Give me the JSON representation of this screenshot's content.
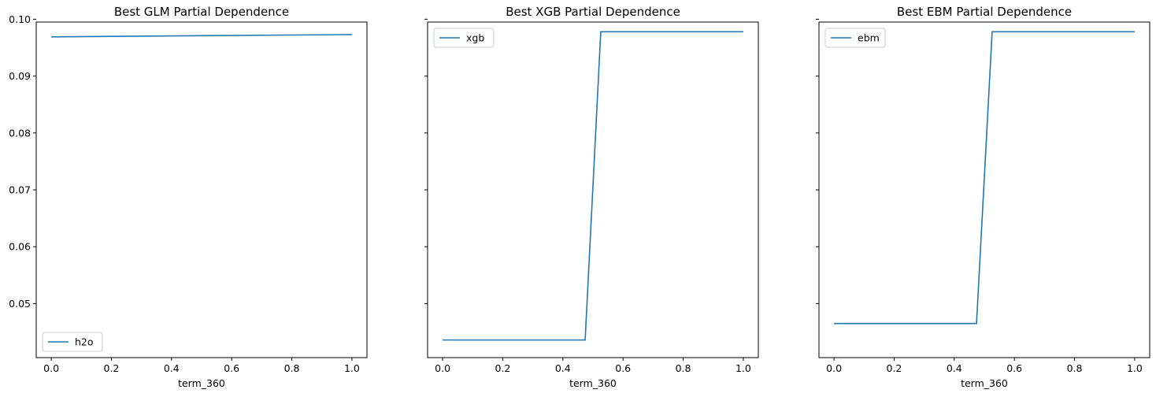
{
  "chart_data": [
    {
      "type": "line",
      "title": "Best GLM Partial Dependence",
      "xlabel": "term_360",
      "ylabel": "",
      "xlim": [
        -0.05,
        1.05
      ],
      "ylim": [
        0.0405,
        0.0995
      ],
      "xticks": [
        0.0,
        0.2,
        0.4,
        0.6,
        0.8,
        1.0
      ],
      "xtick_labels": [
        "0.0",
        "0.2",
        "0.4",
        "0.6",
        "0.8",
        "1.0"
      ],
      "yticks": [
        0.05,
        0.06,
        0.07,
        0.08,
        0.09,
        0.1
      ],
      "ytick_labels": [
        "0.05",
        "0.06",
        "0.07",
        "0.08",
        "0.09",
        "0.10"
      ],
      "legend_position": "lower-left",
      "series": [
        {
          "name": "h2o",
          "color": "#1f77b4",
          "x": [
            0.0,
            1.0
          ],
          "y": [
            0.0969,
            0.0973
          ]
        }
      ]
    },
    {
      "type": "line",
      "title": "Best XGB Partial Dependence",
      "xlabel": "term_360",
      "ylabel": "",
      "xlim": [
        -0.05,
        1.05
      ],
      "ylim": [
        0.0405,
        0.0995
      ],
      "xticks": [
        0.0,
        0.2,
        0.4,
        0.6,
        0.8,
        1.0
      ],
      "xtick_labels": [
        "0.0",
        "0.2",
        "0.4",
        "0.6",
        "0.8",
        "1.0"
      ],
      "yticks": [
        0.05,
        0.06,
        0.07,
        0.08,
        0.09,
        0.1
      ],
      "ytick_labels": [],
      "legend_position": "upper-left",
      "series": [
        {
          "name": "xgb",
          "color": "#1f77b4",
          "x": [
            0.0,
            0.474,
            0.526,
            1.0
          ],
          "y": [
            0.0436,
            0.0436,
            0.0978,
            0.0978
          ]
        }
      ]
    },
    {
      "type": "line",
      "title": "Best EBM Partial Dependence",
      "xlabel": "term_360",
      "ylabel": "",
      "xlim": [
        -0.05,
        1.05
      ],
      "ylim": [
        0.0405,
        0.0995
      ],
      "xticks": [
        0.0,
        0.2,
        0.4,
        0.6,
        0.8,
        1.0
      ],
      "xtick_labels": [
        "0.0",
        "0.2",
        "0.4",
        "0.6",
        "0.8",
        "1.0"
      ],
      "yticks": [
        0.05,
        0.06,
        0.07,
        0.08,
        0.09,
        0.1
      ],
      "ytick_labels": [],
      "legend_position": "upper-left",
      "series": [
        {
          "name": "ebm",
          "color": "#1f77b4",
          "x": [
            0.0,
            0.474,
            0.526,
            1.0
          ],
          "y": [
            0.0465,
            0.0465,
            0.0978,
            0.0978
          ]
        }
      ]
    }
  ]
}
